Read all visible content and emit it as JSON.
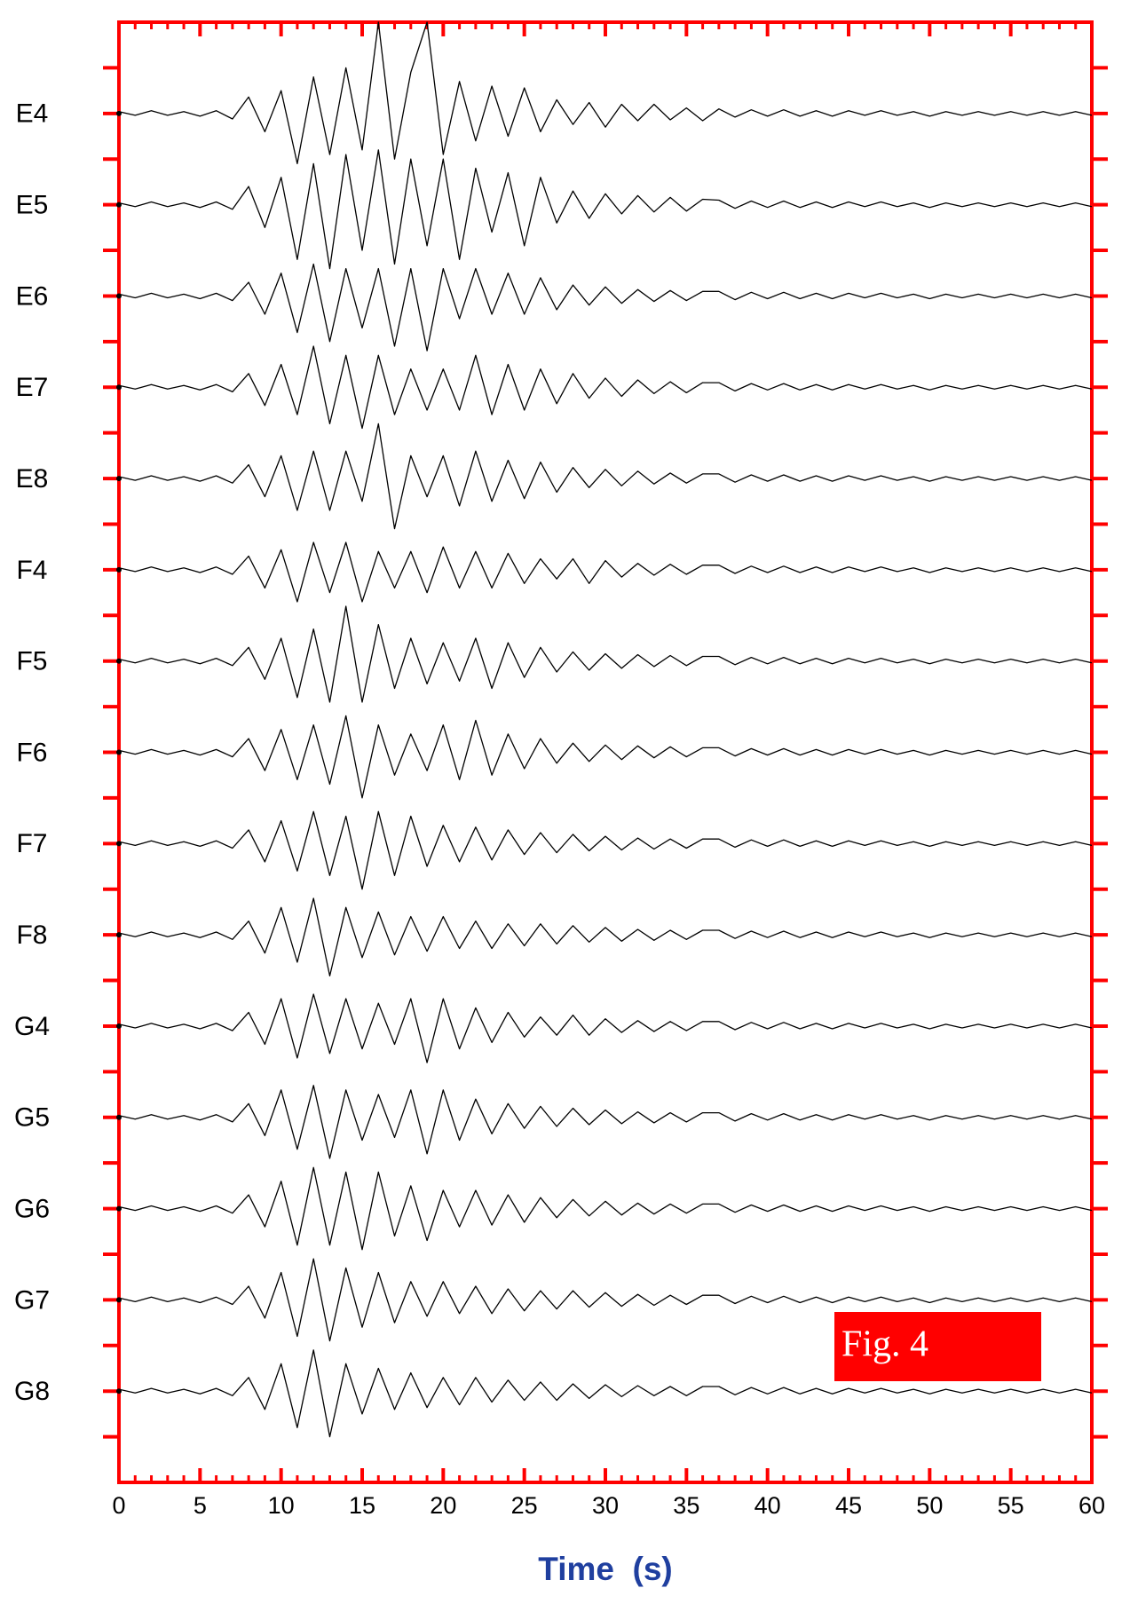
{
  "chart_data": {
    "type": "line",
    "x_label": "Time  (s)",
    "annotation": "Fig. 4",
    "axis_color": "#ff0000",
    "xlim": [
      0,
      60
    ],
    "xticks": [
      0,
      5,
      10,
      15,
      20,
      25,
      30,
      35,
      40,
      45,
      50,
      55,
      60
    ],
    "x": [
      0,
      1,
      2,
      3,
      4,
      5,
      6,
      7,
      8,
      9,
      10,
      11,
      12,
      13,
      14,
      15,
      16,
      17,
      18,
      19,
      20,
      21,
      22,
      23,
      24,
      25,
      26,
      27,
      28,
      29,
      30,
      31,
      32,
      33,
      34,
      35,
      36,
      37,
      38,
      39,
      40,
      41,
      42,
      43,
      44,
      45,
      46,
      47,
      48,
      49,
      50,
      51,
      52,
      53,
      54,
      55,
      56,
      57,
      58,
      59,
      60
    ],
    "series": [
      {
        "name": "E4",
        "color": "#000000",
        "values": [
          0.02,
          -0.02,
          0.03,
          -0.02,
          0.02,
          -0.03,
          0.03,
          -0.06,
          0.18,
          -0.2,
          0.25,
          -0.55,
          0.4,
          -0.45,
          0.5,
          -0.4,
          1.0,
          -0.5,
          0.45,
          1.0,
          -0.45,
          0.35,
          -0.3,
          0.3,
          -0.25,
          0.28,
          -0.2,
          0.15,
          -0.12,
          0.12,
          -0.15,
          0.1,
          -0.08,
          0.1,
          -0.07,
          0.06,
          -0.08,
          0.05,
          -0.04,
          0.04,
          -0.03,
          0.04,
          -0.03,
          0.03,
          -0.03,
          0.03,
          -0.02,
          0.03,
          -0.02,
          0.02,
          -0.03,
          0.02,
          -0.02,
          0.02,
          -0.02,
          0.02,
          -0.02,
          0.02,
          -0.02,
          0.02,
          -0.02
        ]
      },
      {
        "name": "E5",
        "color": "#000000",
        "values": [
          0.02,
          -0.02,
          0.03,
          -0.02,
          0.02,
          -0.03,
          0.03,
          -0.05,
          0.2,
          -0.25,
          0.3,
          -0.6,
          0.45,
          -0.7,
          0.55,
          -0.5,
          0.6,
          -0.65,
          0.5,
          -0.45,
          0.5,
          -0.6,
          0.4,
          -0.3,
          0.35,
          -0.45,
          0.3,
          -0.2,
          0.15,
          -0.15,
          0.12,
          -0.1,
          0.1,
          -0.08,
          0.08,
          -0.07,
          0.06,
          0.05,
          -0.04,
          0.04,
          -0.03,
          0.04,
          -0.03,
          0.03,
          -0.03,
          0.03,
          -0.02,
          0.03,
          -0.02,
          0.02,
          -0.03,
          0.02,
          -0.02,
          0.02,
          -0.02,
          0.02,
          -0.02,
          0.02,
          -0.02,
          0.02,
          -0.02
        ]
      },
      {
        "name": "E6",
        "color": "#000000",
        "values": [
          0.02,
          -0.02,
          0.03,
          -0.02,
          0.02,
          -0.03,
          0.03,
          -0.05,
          0.15,
          -0.2,
          0.25,
          -0.4,
          0.35,
          -0.5,
          0.3,
          -0.35,
          0.3,
          -0.55,
          0.3,
          -0.6,
          0.3,
          -0.25,
          0.3,
          -0.2,
          0.25,
          -0.2,
          0.2,
          -0.15,
          0.12,
          -0.1,
          0.1,
          -0.08,
          0.07,
          -0.06,
          0.06,
          -0.05,
          0.05,
          0.05,
          -0.04,
          0.04,
          -0.03,
          0.04,
          -0.03,
          0.03,
          -0.03,
          0.03,
          -0.02,
          0.03,
          -0.02,
          0.02,
          -0.03,
          0.02,
          -0.02,
          0.02,
          -0.02,
          0.02,
          -0.02,
          0.02,
          -0.02,
          0.02,
          -0.02
        ]
      },
      {
        "name": "E7",
        "color": "#000000",
        "values": [
          0.02,
          -0.02,
          0.03,
          -0.02,
          0.02,
          -0.03,
          0.03,
          -0.05,
          0.15,
          -0.2,
          0.25,
          -0.3,
          0.45,
          -0.4,
          0.35,
          -0.45,
          0.35,
          -0.3,
          0.2,
          -0.25,
          0.2,
          -0.25,
          0.35,
          -0.3,
          0.25,
          -0.25,
          0.2,
          -0.18,
          0.15,
          -0.12,
          0.1,
          -0.1,
          0.08,
          -0.07,
          0.06,
          -0.06,
          0.05,
          0.05,
          -0.04,
          0.04,
          -0.03,
          0.04,
          -0.03,
          0.03,
          -0.03,
          0.03,
          -0.02,
          0.03,
          -0.02,
          0.02,
          -0.03,
          0.02,
          -0.02,
          0.02,
          -0.02,
          0.02,
          -0.02,
          0.02,
          -0.02,
          0.02,
          -0.02
        ]
      },
      {
        "name": "E8",
        "color": "#000000",
        "values": [
          0.02,
          -0.02,
          0.03,
          -0.02,
          0.02,
          -0.03,
          0.03,
          -0.05,
          0.15,
          -0.2,
          0.25,
          -0.35,
          0.3,
          -0.35,
          0.3,
          -0.25,
          0.6,
          -0.55,
          0.25,
          -0.2,
          0.25,
          -0.3,
          0.3,
          -0.25,
          0.2,
          -0.22,
          0.18,
          -0.15,
          0.12,
          -0.1,
          0.1,
          -0.08,
          0.08,
          -0.06,
          0.06,
          -0.05,
          0.05,
          0.05,
          -0.04,
          0.04,
          -0.03,
          0.04,
          -0.03,
          0.03,
          -0.03,
          0.03,
          -0.02,
          0.03,
          -0.02,
          0.02,
          -0.03,
          0.02,
          -0.02,
          0.02,
          -0.02,
          0.02,
          -0.02,
          0.02,
          -0.02,
          0.02,
          -0.02
        ]
      },
      {
        "name": "F4",
        "color": "#000000",
        "values": [
          0.02,
          -0.02,
          0.03,
          -0.02,
          0.02,
          -0.03,
          0.03,
          -0.05,
          0.15,
          -0.2,
          0.22,
          -0.35,
          0.3,
          -0.25,
          0.3,
          -0.35,
          0.2,
          -0.2,
          0.2,
          -0.25,
          0.25,
          -0.2,
          0.2,
          -0.2,
          0.18,
          -0.15,
          0.12,
          -0.1,
          0.12,
          -0.15,
          0.1,
          -0.08,
          0.07,
          -0.06,
          0.06,
          -0.05,
          0.05,
          0.05,
          -0.04,
          0.04,
          -0.03,
          0.04,
          -0.03,
          0.03,
          -0.03,
          0.03,
          -0.02,
          0.03,
          -0.02,
          0.02,
          -0.03,
          0.02,
          -0.02,
          0.02,
          -0.02,
          0.02,
          -0.02,
          0.02,
          -0.02,
          0.02,
          -0.02
        ]
      },
      {
        "name": "F5",
        "color": "#000000",
        "values": [
          0.02,
          -0.02,
          0.03,
          -0.02,
          0.02,
          -0.03,
          0.03,
          -0.05,
          0.15,
          -0.2,
          0.25,
          -0.4,
          0.35,
          -0.45,
          0.6,
          -0.45,
          0.4,
          -0.3,
          0.25,
          -0.25,
          0.2,
          -0.22,
          0.25,
          -0.3,
          0.2,
          -0.18,
          0.15,
          -0.12,
          0.1,
          -0.1,
          0.08,
          -0.08,
          0.07,
          -0.06,
          0.06,
          -0.05,
          0.05,
          0.05,
          -0.04,
          0.04,
          -0.03,
          0.04,
          -0.03,
          0.03,
          -0.03,
          0.03,
          -0.02,
          0.03,
          -0.02,
          0.02,
          -0.03,
          0.02,
          -0.02,
          0.02,
          -0.02,
          0.02,
          -0.02,
          0.02,
          -0.02,
          0.02,
          -0.02
        ]
      },
      {
        "name": "F6",
        "color": "#000000",
        "values": [
          0.02,
          -0.02,
          0.03,
          -0.02,
          0.02,
          -0.03,
          0.03,
          -0.05,
          0.15,
          -0.2,
          0.25,
          -0.3,
          0.3,
          -0.35,
          0.4,
          -0.5,
          0.3,
          -0.25,
          0.2,
          -0.2,
          0.3,
          -0.3,
          0.35,
          -0.25,
          0.2,
          -0.18,
          0.15,
          -0.12,
          0.1,
          -0.1,
          0.08,
          -0.08,
          0.07,
          -0.06,
          0.06,
          -0.05,
          0.05,
          0.05,
          -0.04,
          0.04,
          -0.03,
          0.04,
          -0.03,
          0.03,
          -0.03,
          0.03,
          -0.02,
          0.03,
          -0.02,
          0.02,
          -0.03,
          0.02,
          -0.02,
          0.02,
          -0.02,
          0.02,
          -0.02,
          0.02,
          -0.02,
          0.02,
          -0.02
        ]
      },
      {
        "name": "F7",
        "color": "#000000",
        "values": [
          0.02,
          -0.02,
          0.03,
          -0.02,
          0.02,
          -0.03,
          0.03,
          -0.05,
          0.15,
          -0.2,
          0.25,
          -0.3,
          0.35,
          -0.35,
          0.3,
          -0.5,
          0.35,
          -0.35,
          0.3,
          -0.25,
          0.2,
          -0.2,
          0.18,
          -0.18,
          0.15,
          -0.12,
          0.12,
          -0.1,
          0.1,
          -0.08,
          0.08,
          -0.07,
          0.06,
          -0.06,
          0.05,
          -0.05,
          0.05,
          0.05,
          -0.04,
          0.04,
          -0.03,
          0.04,
          -0.03,
          0.03,
          -0.03,
          0.03,
          -0.02,
          0.03,
          -0.02,
          0.02,
          -0.03,
          0.02,
          -0.02,
          0.02,
          -0.02,
          0.02,
          -0.02,
          0.02,
          -0.02,
          0.02,
          -0.02
        ]
      },
      {
        "name": "F8",
        "color": "#000000",
        "values": [
          0.02,
          -0.02,
          0.03,
          -0.02,
          0.02,
          -0.03,
          0.03,
          -0.05,
          0.15,
          -0.2,
          0.3,
          -0.3,
          0.4,
          -0.45,
          0.3,
          -0.25,
          0.25,
          -0.22,
          0.2,
          -0.18,
          0.2,
          -0.15,
          0.15,
          -0.15,
          0.12,
          -0.12,
          0.12,
          -0.1,
          0.1,
          -0.08,
          0.08,
          -0.07,
          0.06,
          -0.06,
          0.05,
          -0.05,
          0.05,
          0.05,
          -0.04,
          0.04,
          -0.03,
          0.04,
          -0.03,
          0.03,
          -0.03,
          0.03,
          -0.02,
          0.03,
          -0.02,
          0.02,
          -0.03,
          0.02,
          -0.02,
          0.02,
          -0.02,
          0.02,
          -0.02,
          0.02,
          -0.02,
          0.02,
          -0.02
        ]
      },
      {
        "name": "G4",
        "color": "#000000",
        "values": [
          0.02,
          -0.02,
          0.03,
          -0.02,
          0.02,
          -0.03,
          0.03,
          -0.05,
          0.15,
          -0.2,
          0.3,
          -0.35,
          0.35,
          -0.3,
          0.3,
          -0.25,
          0.25,
          -0.2,
          0.3,
          -0.4,
          0.3,
          -0.25,
          0.2,
          -0.18,
          0.15,
          -0.12,
          0.1,
          -0.1,
          0.12,
          -0.1,
          0.08,
          -0.07,
          0.06,
          -0.06,
          0.05,
          -0.05,
          0.05,
          0.05,
          -0.04,
          0.04,
          -0.03,
          0.04,
          -0.03,
          0.03,
          -0.03,
          0.03,
          -0.02,
          0.03,
          -0.02,
          0.02,
          -0.03,
          0.02,
          -0.02,
          0.02,
          -0.02,
          0.02,
          -0.02,
          0.02,
          -0.02,
          0.02,
          -0.02
        ]
      },
      {
        "name": "G5",
        "color": "#000000",
        "values": [
          0.02,
          -0.02,
          0.03,
          -0.02,
          0.02,
          -0.03,
          0.03,
          -0.05,
          0.15,
          -0.2,
          0.3,
          -0.35,
          0.35,
          -0.45,
          0.3,
          -0.25,
          0.25,
          -0.22,
          0.3,
          -0.4,
          0.3,
          -0.25,
          0.2,
          -0.18,
          0.15,
          -0.12,
          0.12,
          -0.1,
          0.1,
          -0.08,
          0.08,
          -0.07,
          0.06,
          -0.06,
          0.05,
          -0.05,
          0.05,
          0.05,
          -0.04,
          0.04,
          -0.03,
          0.04,
          -0.03,
          0.03,
          -0.03,
          0.03,
          -0.02,
          0.03,
          -0.02,
          0.02,
          -0.03,
          0.02,
          -0.02,
          0.02,
          -0.02,
          0.02,
          -0.02,
          0.02,
          -0.02,
          0.02,
          -0.02
        ]
      },
      {
        "name": "G6",
        "color": "#000000",
        "values": [
          0.02,
          -0.02,
          0.03,
          -0.02,
          0.02,
          -0.03,
          0.03,
          -0.05,
          0.15,
          -0.2,
          0.3,
          -0.4,
          0.45,
          -0.4,
          0.4,
          -0.45,
          0.4,
          -0.3,
          0.25,
          -0.35,
          0.2,
          -0.2,
          0.2,
          -0.18,
          0.15,
          -0.15,
          0.12,
          -0.1,
          0.1,
          -0.08,
          0.08,
          -0.07,
          0.06,
          -0.06,
          0.05,
          -0.05,
          0.05,
          0.05,
          -0.04,
          0.04,
          -0.03,
          0.04,
          -0.03,
          0.03,
          -0.03,
          0.03,
          -0.02,
          0.03,
          -0.02,
          0.02,
          -0.03,
          0.02,
          -0.02,
          0.02,
          -0.02,
          0.02,
          -0.02,
          0.02,
          -0.02,
          0.02,
          -0.02
        ]
      },
      {
        "name": "G7",
        "color": "#000000",
        "values": [
          0.02,
          -0.02,
          0.03,
          -0.02,
          0.02,
          -0.03,
          0.03,
          -0.05,
          0.15,
          -0.2,
          0.3,
          -0.4,
          0.45,
          -0.45,
          0.35,
          -0.3,
          0.3,
          -0.25,
          0.2,
          -0.18,
          0.2,
          -0.15,
          0.15,
          -0.15,
          0.12,
          -0.12,
          0.1,
          -0.1,
          0.1,
          -0.08,
          0.08,
          -0.07,
          0.06,
          -0.06,
          0.05,
          -0.05,
          0.05,
          0.05,
          -0.04,
          0.04,
          -0.03,
          0.04,
          -0.03,
          0.03,
          -0.03,
          0.03,
          -0.02,
          0.03,
          -0.02,
          0.02,
          -0.03,
          0.02,
          -0.02,
          0.02,
          -0.02,
          0.02,
          -0.02,
          0.02,
          -0.02,
          0.02,
          -0.02
        ]
      },
      {
        "name": "G8",
        "color": "#000000",
        "values": [
          0.02,
          -0.02,
          0.03,
          -0.02,
          0.02,
          -0.03,
          0.03,
          -0.05,
          0.15,
          -0.2,
          0.3,
          -0.4,
          0.45,
          -0.5,
          0.3,
          -0.25,
          0.25,
          -0.2,
          0.2,
          -0.18,
          0.15,
          -0.15,
          0.15,
          -0.12,
          0.12,
          -0.1,
          0.1,
          -0.1,
          0.08,
          -0.08,
          0.07,
          -0.06,
          0.06,
          -0.05,
          0.05,
          -0.05,
          0.05,
          0.05,
          -0.04,
          0.04,
          -0.03,
          0.04,
          -0.03,
          0.03,
          -0.03,
          0.03,
          -0.02,
          0.03,
          -0.02,
          0.02,
          -0.03,
          0.02,
          -0.02,
          0.02,
          -0.02,
          0.02,
          -0.02,
          0.02,
          -0.02,
          0.02,
          -0.02
        ]
      }
    ]
  }
}
